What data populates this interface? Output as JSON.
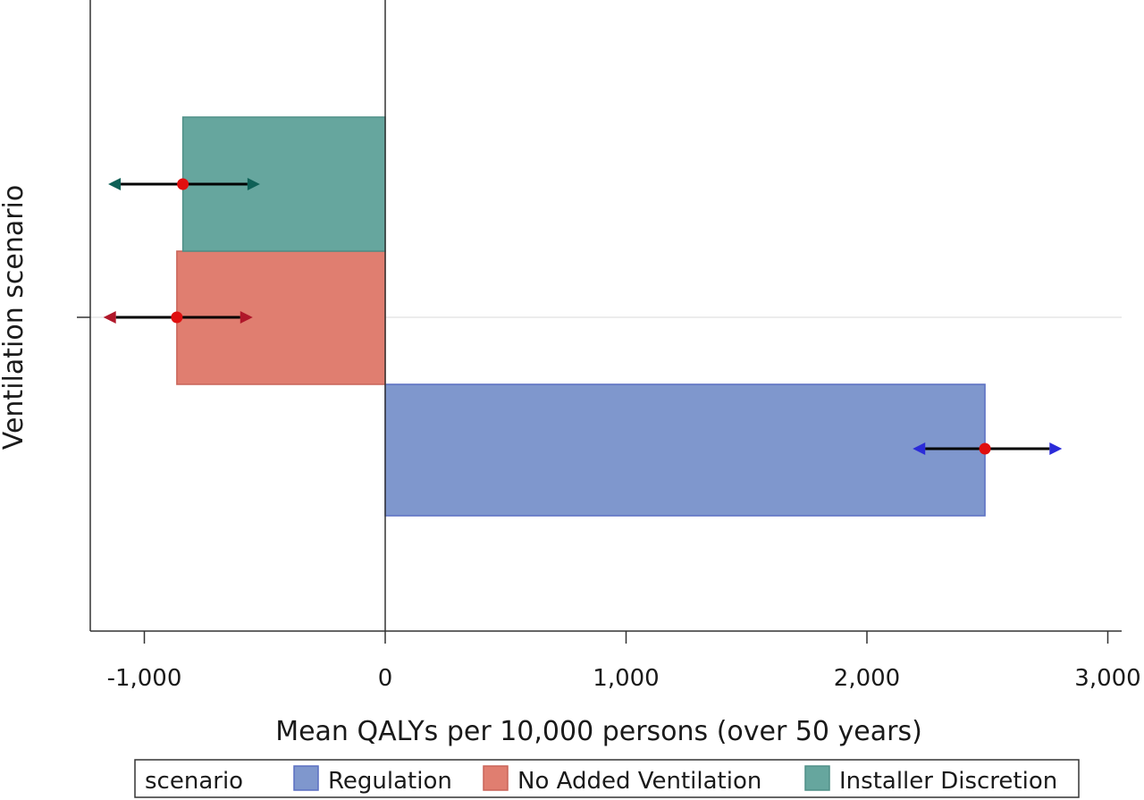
{
  "chart_data": {
    "type": "bar",
    "orientation": "horizontal",
    "xlabel": "Mean QALYs per 10,000 persons (over 50 years)",
    "ylabel": "Ventilation scenario",
    "xlim": [
      -1200,
      3050
    ],
    "xticks": [
      -1000,
      0,
      1000,
      2000,
      3000
    ],
    "xtick_labels": [
      "-1,000",
      "0",
      "1,000",
      "2,000",
      "3,000"
    ],
    "grid": "single horizontal reference line at the category center",
    "legend_position": "bottom",
    "legend_title": "scenario",
    "series": [
      {
        "name": "Regulation",
        "value": 2490,
        "ci_low": 2190,
        "ci_high": 2810,
        "color": "#7f97cd",
        "border": "#5a6fc2",
        "arrow_color": "#2b2bd9"
      },
      {
        "name": "No Added Ventilation",
        "value": -865,
        "ci_low": -1170,
        "ci_high": -550,
        "color": "#e07e70",
        "border": "#c96458",
        "arrow_color": "#b0172a"
      },
      {
        "name": "Installer Discretion",
        "value": -840,
        "ci_low": -1150,
        "ci_high": -520,
        "color": "#66a69e",
        "border": "#4f8f87",
        "arrow_color": "#0f6157"
      }
    ],
    "point_color": "#e00f0f"
  }
}
